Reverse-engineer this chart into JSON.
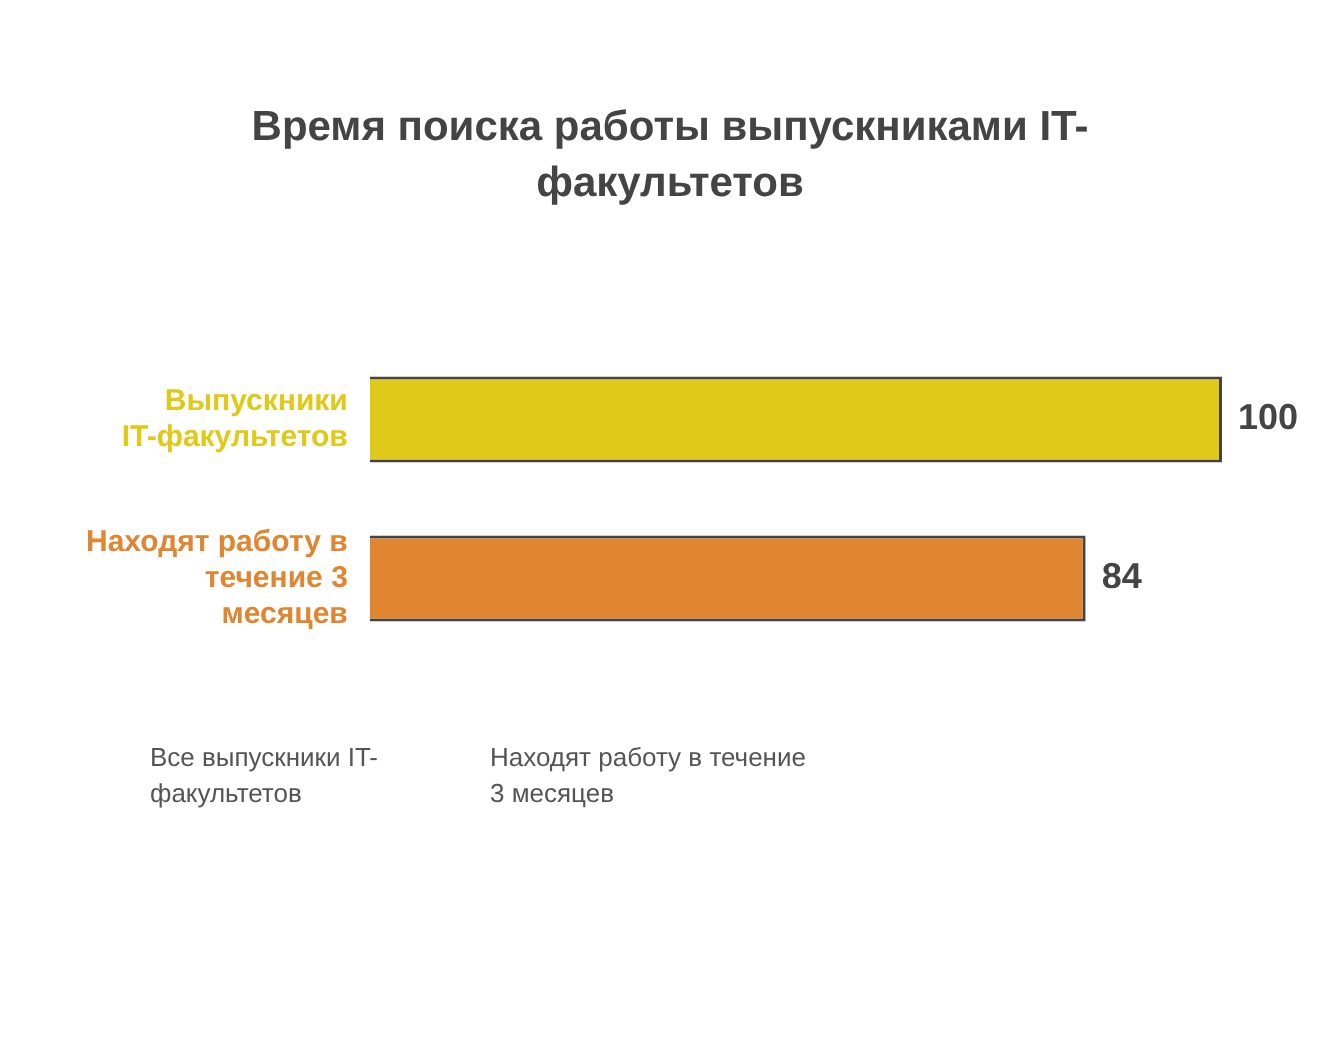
{
  "chart_data": {
    "type": "bar",
    "orientation": "horizontal",
    "title": "Время поиска работы выпускниками IT-факультетов",
    "categories": [
      "Выпускники IT-факультетов",
      "Находят работу в течение 3 месяцев"
    ],
    "values": [
      100,
      84
    ],
    "colors": [
      "#e0c918",
      "#e08530"
    ],
    "data_labels": true,
    "legend": false,
    "annotations": [
      "Все выпускники IT-факультетов",
      "Находят работу в течение 3 месяцев"
    ]
  }
}
